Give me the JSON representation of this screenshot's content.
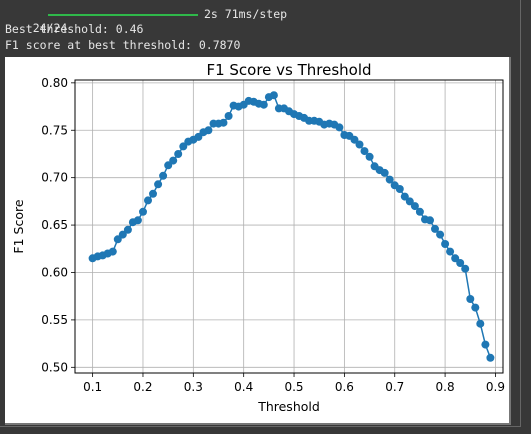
{
  "console": {
    "progress_count": "24/24",
    "progress_fraction": 1.0,
    "progress_time": "2s 71ms/step",
    "best_threshold_line": "Best threshold: 0.46",
    "best_f1_line": "F1 score at best threshold: 0.7870"
  },
  "colors": {
    "progress": "#2fb84a",
    "series": "#1f77b4"
  },
  "chart_data": {
    "type": "line",
    "title": "F1 Score vs Threshold",
    "xlabel": "Threshold",
    "ylabel": "F1 Score",
    "xlim": [
      0.065,
      0.915
    ],
    "ylim": [
      0.494,
      0.803
    ],
    "grid": true,
    "marker": "circle",
    "xticks": [
      "0.1",
      "0.2",
      "0.3",
      "0.4",
      "0.5",
      "0.6",
      "0.7",
      "0.8",
      "0.9"
    ],
    "yticks": [
      "0.50",
      "0.55",
      "0.60",
      "0.65",
      "0.70",
      "0.75",
      "0.80"
    ],
    "x": [
      0.1,
      0.11,
      0.12,
      0.13,
      0.14,
      0.15,
      0.16,
      0.17,
      0.18,
      0.19,
      0.2,
      0.21,
      0.22,
      0.23,
      0.24,
      0.25,
      0.26,
      0.27,
      0.28,
      0.29,
      0.3,
      0.31,
      0.32,
      0.33,
      0.34,
      0.35,
      0.36,
      0.37,
      0.38,
      0.39,
      0.4,
      0.41,
      0.42,
      0.43,
      0.44,
      0.45,
      0.46,
      0.47,
      0.48,
      0.49,
      0.5,
      0.51,
      0.52,
      0.53,
      0.54,
      0.55,
      0.56,
      0.57,
      0.58,
      0.59,
      0.6,
      0.61,
      0.62,
      0.63,
      0.64,
      0.65,
      0.66,
      0.67,
      0.68,
      0.69,
      0.7,
      0.71,
      0.72,
      0.73,
      0.74,
      0.75,
      0.76,
      0.77,
      0.78,
      0.79,
      0.8,
      0.81,
      0.82,
      0.83,
      0.84,
      0.85,
      0.86,
      0.87,
      0.88,
      0.89
    ],
    "y": [
      0.615,
      0.617,
      0.618,
      0.62,
      0.622,
      0.635,
      0.64,
      0.645,
      0.653,
      0.655,
      0.664,
      0.676,
      0.683,
      0.693,
      0.702,
      0.713,
      0.718,
      0.725,
      0.733,
      0.738,
      0.74,
      0.743,
      0.748,
      0.75,
      0.757,
      0.757,
      0.758,
      0.765,
      0.776,
      0.775,
      0.777,
      0.781,
      0.78,
      0.778,
      0.777,
      0.785,
      0.787,
      0.773,
      0.773,
      0.77,
      0.767,
      0.765,
      0.763,
      0.76,
      0.76,
      0.759,
      0.756,
      0.757,
      0.756,
      0.753,
      0.745,
      0.744,
      0.74,
      0.735,
      0.728,
      0.722,
      0.712,
      0.708,
      0.705,
      0.698,
      0.692,
      0.688,
      0.68,
      0.675,
      0.67,
      0.664,
      0.656,
      0.655,
      0.646,
      0.64,
      0.63,
      0.622,
      0.615,
      0.61,
      0.604,
      0.572,
      0.563,
      0.546,
      0.524,
      0.51
    ]
  }
}
